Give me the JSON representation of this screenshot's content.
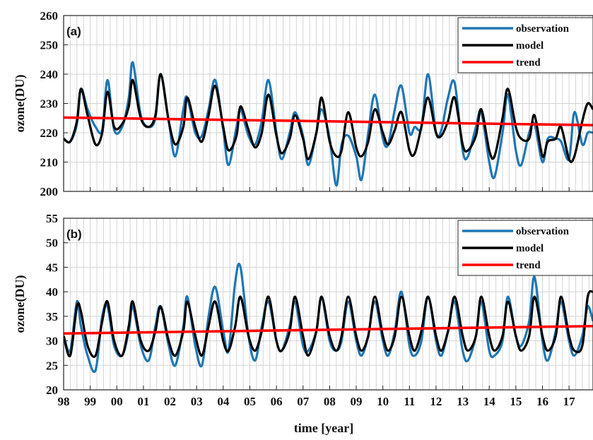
{
  "chart_data": [
    {
      "type": "line",
      "panel_label": "(a)",
      "ylabel": "ozone(DU)",
      "xlabel": "",
      "ylim": [
        200,
        260
      ],
      "yticks": [
        200,
        210,
        220,
        230,
        240,
        250,
        260
      ],
      "xlim": [
        1998,
        2017.9
      ],
      "xtick_labels": [],
      "grid": true,
      "legend_position": "top-right",
      "legend": [
        "observation",
        "model",
        "trend"
      ],
      "colors": {
        "observation": "#1f77b4",
        "model": "#000000",
        "trend": "#ff0000"
      },
      "x": [
        1998.0,
        1998.25,
        1998.5,
        1998.65,
        1998.9,
        1999.2,
        1999.45,
        1999.65,
        1999.9,
        2000.2,
        2000.45,
        2000.6,
        2000.9,
        2001.2,
        2001.45,
        2001.65,
        2001.95,
        2002.2,
        2002.5,
        2002.65,
        2002.95,
        2003.2,
        2003.45,
        2003.7,
        2004.0,
        2004.2,
        2004.5,
        2004.65,
        2004.95,
        2005.2,
        2005.45,
        2005.7,
        2006.0,
        2006.2,
        2006.5,
        2006.7,
        2007.0,
        2007.2,
        2007.5,
        2007.7,
        2008.0,
        2008.25,
        2008.45,
        2008.7,
        2009.0,
        2009.2,
        2009.45,
        2009.7,
        2010.0,
        2010.2,
        2010.45,
        2010.7,
        2011.0,
        2011.2,
        2011.45,
        2011.7,
        2012.0,
        2012.2,
        2012.45,
        2012.7,
        2013.0,
        2013.2,
        2013.5,
        2013.7,
        2014.0,
        2014.2,
        2014.5,
        2014.7,
        2015.0,
        2015.2,
        2015.5,
        2015.7,
        2016.0,
        2016.2,
        2016.5,
        2016.7,
        2017.0,
        2017.2,
        2017.5,
        2017.7,
        2017.9
      ],
      "series": [
        {
          "name": "observation",
          "values": [
            218,
            217,
            223,
            235,
            228,
            222,
            221,
            238,
            221,
            222,
            232,
            244,
            226,
            222,
            225,
            240,
            224,
            212,
            228,
            232,
            220,
            219,
            228,
            238,
            221,
            209,
            222,
            228,
            219,
            216,
            224,
            238,
            220,
            211,
            220,
            227,
            219,
            209,
            220,
            228,
            218,
            202,
            216,
            219,
            212,
            204,
            220,
            233,
            218,
            216,
            228,
            236,
            220,
            222,
            222,
            240,
            220,
            221,
            232,
            237,
            214,
            212,
            222,
            227,
            210,
            205,
            220,
            233,
            214,
            209,
            220,
            223,
            210,
            218,
            218,
            217,
            211,
            227,
            216,
            220,
            220
          ]
        },
        {
          "name": "model",
          "values": [
            218,
            217,
            224,
            235,
            226,
            216,
            220,
            234,
            222,
            223,
            229,
            238,
            225,
            222,
            226,
            240,
            224,
            216,
            222,
            232,
            222,
            217,
            226,
            236,
            222,
            214,
            219,
            229,
            221,
            215,
            220,
            233,
            219,
            213,
            218,
            226,
            218,
            211,
            220,
            232,
            217,
            212,
            214,
            227,
            215,
            212,
            217,
            228,
            220,
            216,
            221,
            227,
            214,
            213,
            222,
            232,
            220,
            219,
            224,
            232,
            216,
            214,
            219,
            228,
            214,
            212,
            225,
            235,
            222,
            218,
            218,
            226,
            212,
            217,
            218,
            222,
            211,
            212,
            224,
            230,
            228
          ]
        },
        {
          "name": "trend",
          "values_at_limits": [
            225.2,
            222.6
          ]
        }
      ]
    },
    {
      "type": "line",
      "panel_label": "(b)",
      "ylabel": "ozone(DU)",
      "xlabel": "time [year]",
      "ylim": [
        20,
        55
      ],
      "yticks": [
        20,
        25,
        30,
        35,
        40,
        45,
        50,
        55
      ],
      "xlim": [
        1998,
        2017.9
      ],
      "xtick_labels": [
        "98",
        "99",
        "00",
        "01",
        "02",
        "03",
        "04",
        "05",
        "06",
        "07",
        "08",
        "09",
        "10",
        "11",
        "12",
        "13",
        "14",
        "15",
        "16",
        "17"
      ],
      "grid": true,
      "legend_position": "top-right",
      "legend": [
        "observation",
        "model",
        "trend"
      ],
      "colors": {
        "observation": "#1f77b4",
        "model": "#000000",
        "trend": "#ff0000"
      },
      "x": [
        1998.0,
        1998.25,
        1998.5,
        1998.65,
        1998.9,
        1999.2,
        1999.45,
        1999.65,
        1999.9,
        2000.2,
        2000.45,
        2000.6,
        2000.9,
        2001.2,
        2001.45,
        2001.65,
        2001.95,
        2002.2,
        2002.5,
        2002.65,
        2002.95,
        2003.2,
        2003.45,
        2003.7,
        2004.0,
        2004.2,
        2004.45,
        2004.65,
        2004.95,
        2005.2,
        2005.45,
        2005.7,
        2006.0,
        2006.2,
        2006.5,
        2006.7,
        2007.0,
        2007.2,
        2007.5,
        2007.7,
        2008.0,
        2008.25,
        2008.45,
        2008.7,
        2009.0,
        2009.2,
        2009.45,
        2009.7,
        2010.0,
        2010.2,
        2010.45,
        2010.7,
        2011.0,
        2011.2,
        2011.45,
        2011.7,
        2012.0,
        2012.2,
        2012.45,
        2012.7,
        2013.0,
        2013.2,
        2013.5,
        2013.7,
        2014.0,
        2014.2,
        2014.5,
        2014.7,
        2015.0,
        2015.2,
        2015.5,
        2015.7,
        2016.0,
        2016.2,
        2016.5,
        2016.7,
        2017.0,
        2017.2,
        2017.5,
        2017.7,
        2017.9
      ],
      "series": [
        {
          "name": "observation",
          "values": [
            31,
            28,
            38,
            33,
            27,
            24,
            35,
            37,
            29,
            27,
            32,
            37,
            29,
            26,
            33,
            37,
            29,
            25,
            33,
            39,
            29,
            25,
            35,
            41,
            32,
            28,
            42,
            45,
            31,
            26,
            33,
            38,
            30,
            28,
            33,
            38,
            29,
            28,
            32,
            39,
            30,
            28,
            30,
            38,
            30,
            27,
            31,
            38,
            30,
            27,
            32,
            40,
            29,
            27,
            30,
            39,
            30,
            27,
            32,
            38,
            28,
            26,
            31,
            38,
            28,
            27,
            30,
            39,
            31,
            29,
            34,
            43,
            30,
            26,
            32,
            38,
            30,
            27,
            31,
            37,
            34
          ]
        },
        {
          "name": "model",
          "values": [
            31,
            27,
            37,
            36,
            29,
            27,
            34,
            38,
            30,
            27,
            33,
            38,
            30,
            28,
            32,
            37,
            30,
            27,
            32,
            38,
            31,
            27,
            33,
            38,
            30,
            28,
            33,
            39,
            31,
            28,
            32,
            39,
            30,
            28,
            32,
            39,
            31,
            27,
            32,
            39,
            31,
            28,
            31,
            39,
            31,
            28,
            31,
            39,
            31,
            28,
            31,
            39,
            31,
            28,
            32,
            39,
            31,
            28,
            32,
            39,
            31,
            28,
            31,
            39,
            31,
            28,
            31,
            38,
            31,
            28,
            31,
            39,
            31,
            28,
            31,
            39,
            31,
            28,
            29,
            39,
            40
          ]
        },
        {
          "name": "trend",
          "values_at_limits": [
            31.5,
            33.0
          ]
        }
      ]
    }
  ]
}
